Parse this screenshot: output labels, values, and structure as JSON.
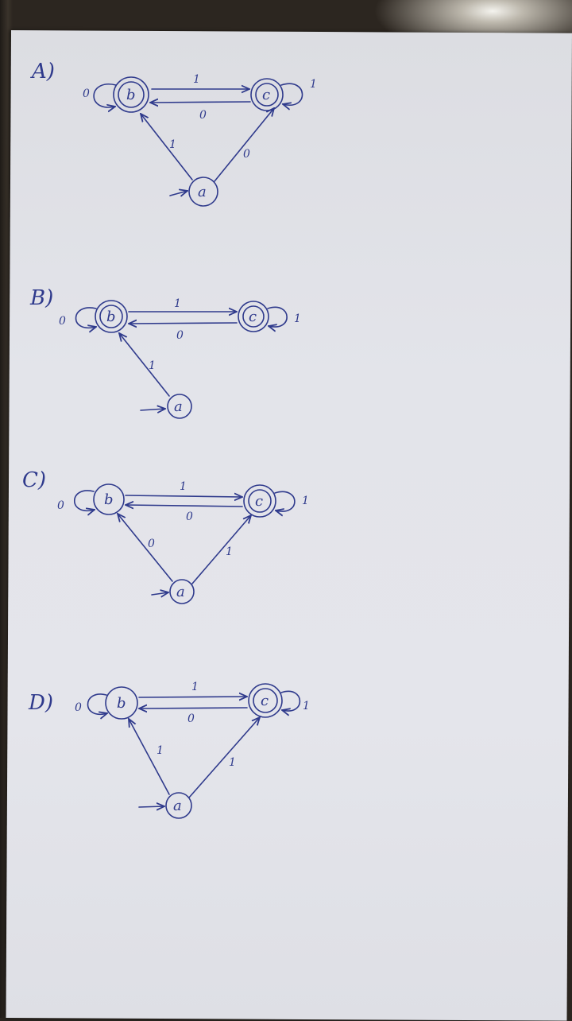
{
  "ink_color": "#2f3a8c",
  "paper_color": "#e3e4ea",
  "diagrams": [
    {
      "label": "A)",
      "states": {
        "a": "a",
        "b": "b",
        "c": "c"
      },
      "edges": {
        "b_to_c": "1",
        "c_to_b": "0",
        "b_loop": "0",
        "c_loop": "1",
        "a_to_b": "1",
        "a_to_c": "0"
      }
    },
    {
      "label": "B)",
      "states": {
        "a": "a",
        "b": "b",
        "c": "c"
      },
      "edges": {
        "b_to_c": "1",
        "c_to_b": "0",
        "b_loop": "0",
        "c_loop": "1",
        "a_to_b": "1"
      }
    },
    {
      "label": "C)",
      "states": {
        "a": "a",
        "b": "b",
        "c": "c"
      },
      "edges": {
        "b_to_c": "1",
        "c_to_b": "0",
        "b_loop": "0",
        "c_loop": "1",
        "a_to_b": "0",
        "a_to_c": "1"
      }
    },
    {
      "label": "D)",
      "states": {
        "a": "a",
        "b": "b",
        "c": "c"
      },
      "edges": {
        "b_to_c": "1",
        "c_to_b": "0",
        "b_loop": "0",
        "c_loop": "1",
        "a_to_b": "1",
        "a_to_c": "1"
      }
    }
  ]
}
